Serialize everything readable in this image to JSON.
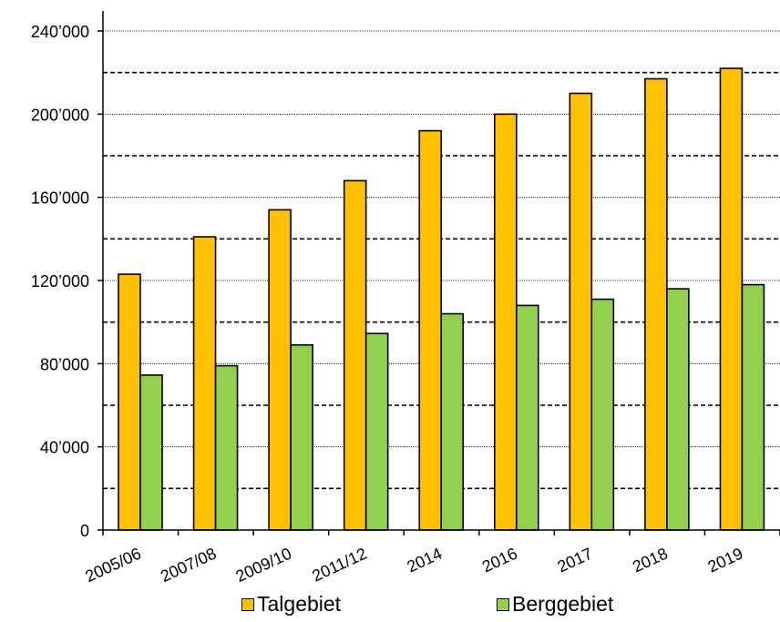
{
  "chart_data": {
    "type": "bar",
    "categories": [
      "2005/06",
      "2007/08",
      "2009/10",
      "2011/12",
      "2014",
      "2016",
      "2017",
      "2018",
      "2019"
    ],
    "series": [
      {
        "name": "Talgebiet",
        "values": [
          123000,
          141000,
          154000,
          168000,
          192000,
          200000,
          210000,
          217000,
          222000
        ]
      },
      {
        "name": "Berggebiet",
        "values": [
          74500,
          79000,
          89000,
          94500,
          104000,
          108000,
          111000,
          116000,
          118000
        ]
      }
    ],
    "ylim": [
      0,
      240000
    ],
    "yticks": [
      0,
      40000,
      80000,
      120000,
      160000,
      200000,
      240000
    ],
    "ytick_labels": [
      "0",
      "40’000",
      "80’000",
      "120’000",
      "160’000",
      "200’000",
      "240’000"
    ],
    "minor_grid": [
      20000,
      60000,
      100000,
      140000,
      180000,
      220000
    ],
    "colors": {
      "Talgebiet": "#FFC000",
      "Berggebiet": "#92D050"
    },
    "legend_position": "bottom",
    "title": "",
    "xlabel": "",
    "ylabel": ""
  }
}
